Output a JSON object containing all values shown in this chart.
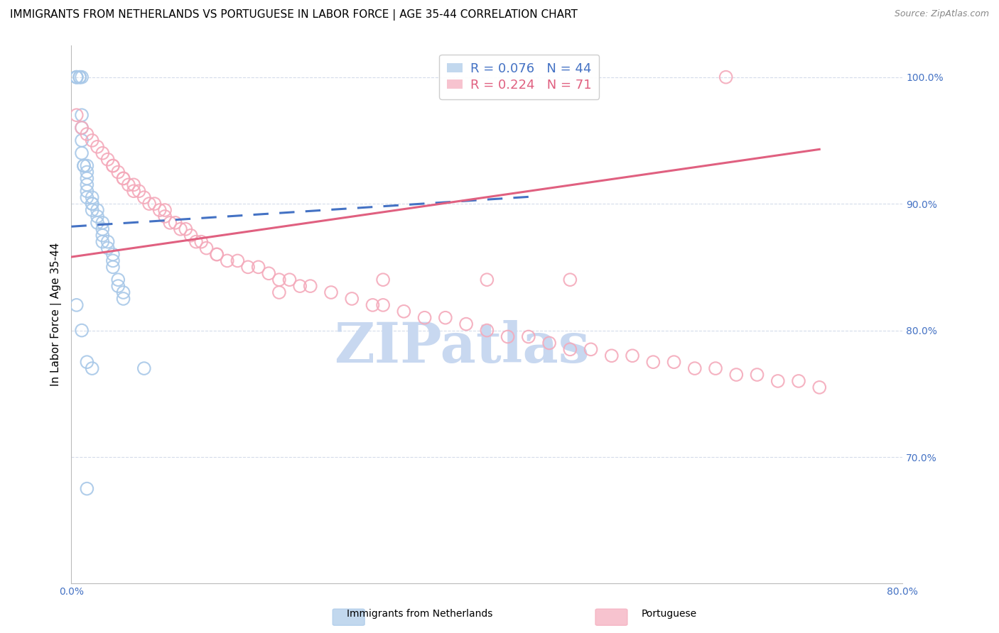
{
  "title": "IMMIGRANTS FROM NETHERLANDS VS PORTUGUESE IN LABOR FORCE | AGE 35-44 CORRELATION CHART",
  "source": "Source: ZipAtlas.com",
  "ylabel": "In Labor Force | Age 35-44",
  "legend_blue_r": "0.076",
  "legend_blue_n": "44",
  "legend_pink_r": "0.224",
  "legend_pink_n": "71",
  "legend_label_blue": "Immigrants from Netherlands",
  "legend_label_pink": "Portuguese",
  "xmin": 0.0,
  "xmax": 0.8,
  "ymin": 0.6,
  "ymax": 1.025,
  "right_yticks": [
    0.7,
    0.8,
    0.9,
    1.0
  ],
  "right_yticklabels": [
    "70.0%",
    "80.0%",
    "90.0%",
    "100.0%"
  ],
  "xticks": [
    0.0,
    0.1,
    0.2,
    0.3,
    0.4,
    0.5,
    0.6,
    0.7,
    0.8
  ],
  "xticklabels": [
    "0.0%",
    "",
    "",
    "",
    "",
    "",
    "",
    "",
    "80.0%"
  ],
  "blue_scatter_color": "#A8C8E8",
  "pink_scatter_color": "#F4AABB",
  "blue_line_color": "#4472C4",
  "pink_line_color": "#E06080",
  "axis_color": "#4472C4",
  "grid_color": "#D0D8E8",
  "watermark": "ZIPatlas",
  "watermark_color": "#C8D8F0",
  "title_fontsize": 11,
  "axis_label_fontsize": 11,
  "tick_fontsize": 10,
  "legend_fontsize": 13,
  "blue_scatter_x": [
    0.005,
    0.005,
    0.005,
    0.008,
    0.008,
    0.01,
    0.01,
    0.01,
    0.01,
    0.01,
    0.012,
    0.012,
    0.015,
    0.015,
    0.015,
    0.015,
    0.015,
    0.015,
    0.02,
    0.02,
    0.02,
    0.02,
    0.025,
    0.025,
    0.025,
    0.03,
    0.03,
    0.03,
    0.03,
    0.035,
    0.035,
    0.04,
    0.04,
    0.04,
    0.045,
    0.045,
    0.05,
    0.05,
    0.005,
    0.01,
    0.015,
    0.02,
    0.07,
    0.015
  ],
  "blue_scatter_y": [
    1.0,
    1.0,
    1.0,
    1.0,
    1.0,
    1.0,
    0.97,
    0.96,
    0.95,
    0.94,
    0.93,
    0.93,
    0.93,
    0.925,
    0.92,
    0.915,
    0.91,
    0.905,
    0.905,
    0.9,
    0.9,
    0.895,
    0.895,
    0.89,
    0.885,
    0.885,
    0.88,
    0.875,
    0.87,
    0.87,
    0.865,
    0.86,
    0.855,
    0.85,
    0.84,
    0.835,
    0.83,
    0.825,
    0.82,
    0.8,
    0.775,
    0.77,
    0.77,
    0.675
  ],
  "pink_scatter_x": [
    0.005,
    0.01,
    0.015,
    0.02,
    0.025,
    0.03,
    0.035,
    0.04,
    0.04,
    0.045,
    0.05,
    0.05,
    0.055,
    0.06,
    0.06,
    0.065,
    0.07,
    0.075,
    0.08,
    0.085,
    0.09,
    0.09,
    0.095,
    0.1,
    0.105,
    0.11,
    0.115,
    0.12,
    0.125,
    0.13,
    0.14,
    0.14,
    0.15,
    0.16,
    0.17,
    0.18,
    0.19,
    0.2,
    0.21,
    0.22,
    0.23,
    0.25,
    0.27,
    0.29,
    0.3,
    0.32,
    0.34,
    0.36,
    0.38,
    0.4,
    0.42,
    0.44,
    0.46,
    0.48,
    0.5,
    0.52,
    0.54,
    0.56,
    0.58,
    0.6,
    0.62,
    0.64,
    0.66,
    0.68,
    0.7,
    0.72,
    0.48,
    0.4,
    0.3,
    0.2,
    0.63
  ],
  "pink_scatter_y": [
    0.97,
    0.96,
    0.955,
    0.95,
    0.945,
    0.94,
    0.935,
    0.93,
    0.93,
    0.925,
    0.92,
    0.92,
    0.915,
    0.915,
    0.91,
    0.91,
    0.905,
    0.9,
    0.9,
    0.895,
    0.895,
    0.89,
    0.885,
    0.885,
    0.88,
    0.88,
    0.875,
    0.87,
    0.87,
    0.865,
    0.86,
    0.86,
    0.855,
    0.855,
    0.85,
    0.85,
    0.845,
    0.84,
    0.84,
    0.835,
    0.835,
    0.83,
    0.825,
    0.82,
    0.82,
    0.815,
    0.81,
    0.81,
    0.805,
    0.8,
    0.795,
    0.795,
    0.79,
    0.785,
    0.785,
    0.78,
    0.78,
    0.775,
    0.775,
    0.77,
    0.77,
    0.765,
    0.765,
    0.76,
    0.76,
    0.755,
    0.84,
    0.84,
    0.84,
    0.83,
    1.0
  ],
  "blue_trend_x0": 0.0,
  "blue_trend_x1": 0.45,
  "blue_trend_y0": 0.882,
  "blue_trend_y1": 0.906,
  "pink_trend_x0": 0.0,
  "pink_trend_x1": 0.72,
  "pink_trend_y0": 0.858,
  "pink_trend_y1": 0.943
}
